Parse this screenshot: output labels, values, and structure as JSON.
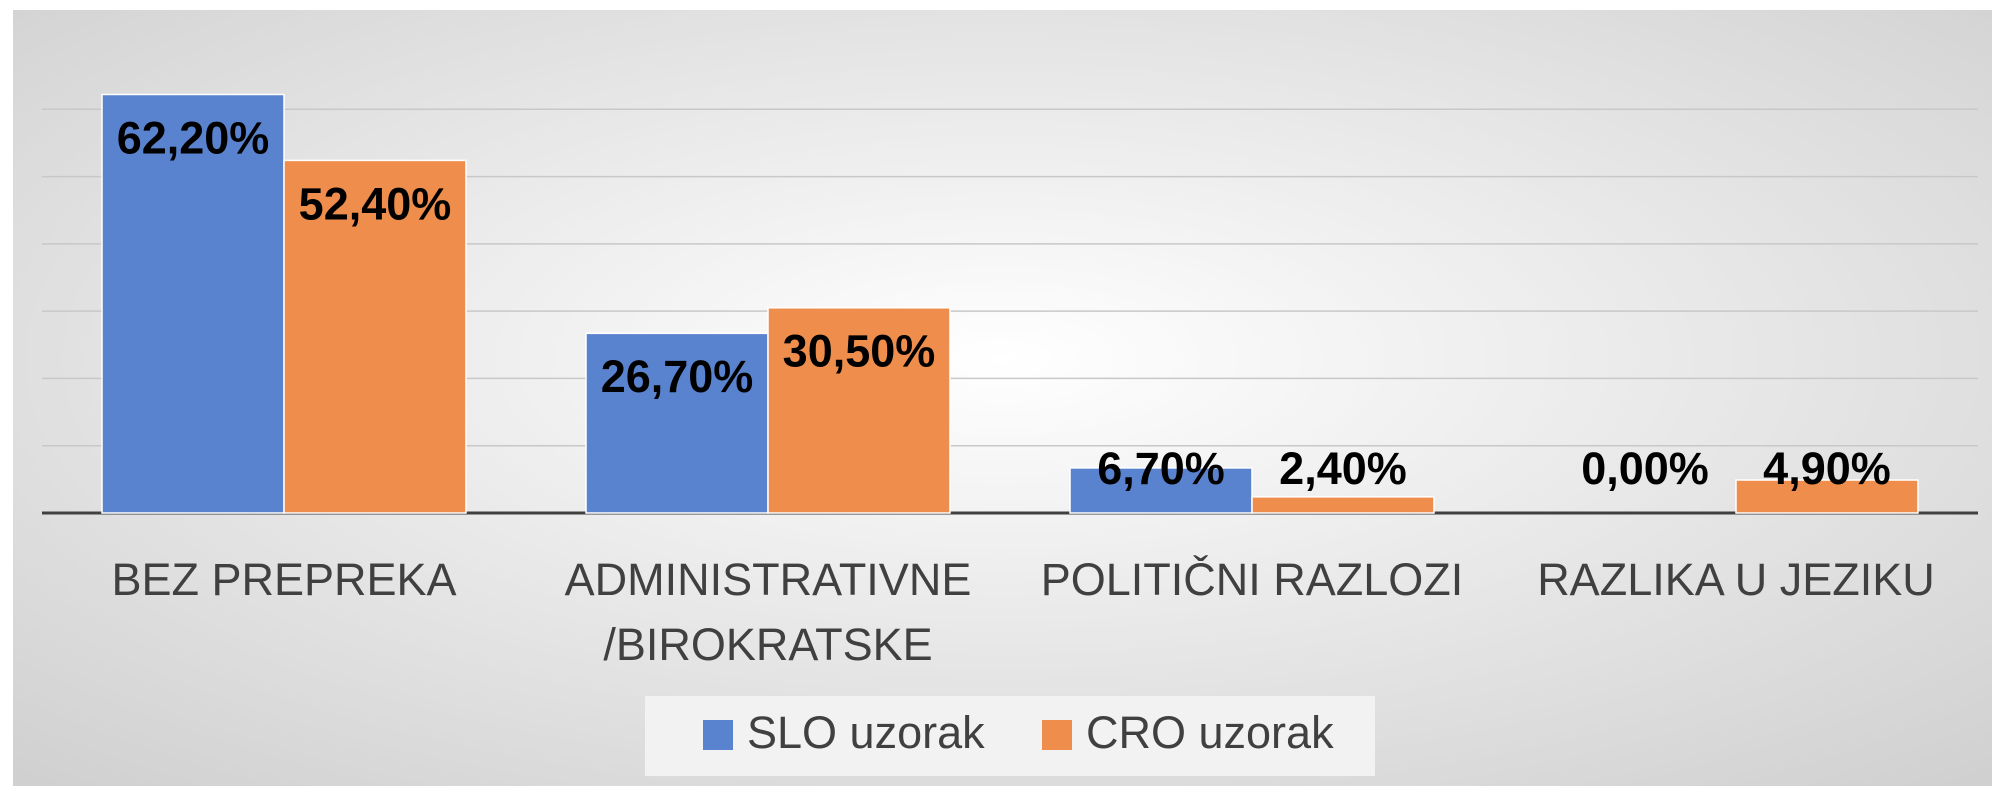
{
  "chart_data": {
    "type": "bar",
    "categories": [
      "BEZ PREPREKA",
      "ADMINISTRATIVNE\n/BIROKRATSKE",
      "POLITIČNI RAZLOZI",
      "RAZLIKA U JEZIKU"
    ],
    "series": [
      {
        "name": "SLO uzorak",
        "color": "#5a83cf",
        "values": [
          62.2,
          26.7,
          6.7,
          0
        ],
        "value_labels": [
          "62,20%",
          "26,70%",
          "6,70%",
          "0,00%"
        ]
      },
      {
        "name": "CRO uzorak",
        "color": "#ee8d4c",
        "values": [
          52.4,
          30.5,
          2.4,
          4.9
        ],
        "value_labels": [
          "52,40%",
          "30,50%",
          "2,40%",
          "4,90%"
        ]
      }
    ],
    "ylim": [
      0,
      70
    ],
    "yticks": [
      0,
      10,
      20,
      30,
      40,
      50,
      60
    ],
    "grid": true,
    "legend": "bottom"
  }
}
